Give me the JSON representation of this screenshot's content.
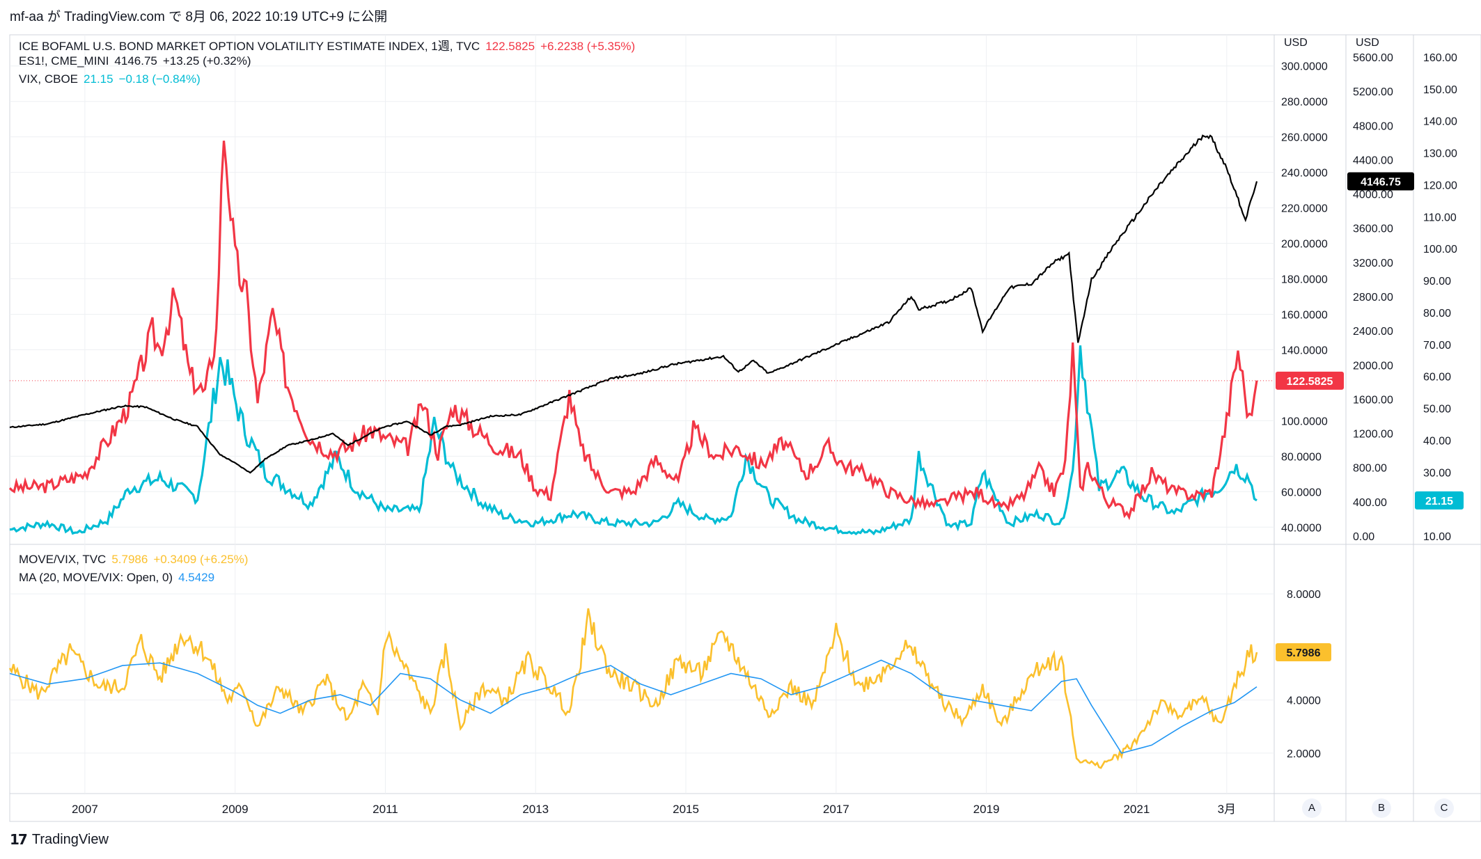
{
  "header": {
    "text": "mf-aa が TradingView.com で 8月 06, 2022 10:19 UTC+9 に公開"
  },
  "legends": {
    "move": {
      "name": "ICE BOFAML U.S. BOND MARKET OPTION VOLATILITY ESTIMATE INDEX, 1週, TVC",
      "value": "122.5825",
      "change": "+6.2238 (+5.35%)"
    },
    "es": {
      "name": "ES1!, CME_MINI",
      "value": "4146.75",
      "change": "+13.25 (+0.32%)"
    },
    "vix": {
      "name": "VIX, CBOE",
      "value": "21.15",
      "change": "−0.18 (−0.84%)"
    },
    "ratio": {
      "name": "MOVE/VIX, TVC",
      "value": "5.7986",
      "change": "+0.3409 (+6.25%)"
    },
    "ma": {
      "name": "MA (20, MOVE/VIX: Open, 0)",
      "value": "4.5429"
    }
  },
  "colors": {
    "move": "#f23645",
    "es": "#000000",
    "vix": "#00bcd4",
    "ratio": "#fbc02d",
    "ma": "#2196f3",
    "grid": "#eef0f3",
    "axis_text": "#131722"
  },
  "footer": {
    "brand": "TradingView",
    "logo_icon": "tradingview-logo-icon"
  },
  "scale_buttons": [
    "A",
    "B",
    "C"
  ],
  "chart_data": [
    {
      "type": "line",
      "title": "ICE BOFAML U.S. BOND MARKET OPTION VOLATILITY ESTIMATE INDEX, 1週, TVC",
      "x_labels": [
        "2007",
        "2009",
        "2011",
        "2013",
        "2015",
        "2017",
        "2019",
        "2021",
        "3月"
      ],
      "axes": {
        "A": {
          "unit": "USD",
          "ticks": [
            "300.0000",
            "280.0000",
            "260.0000",
            "240.0000",
            "220.0000",
            "200.0000",
            "180.0000",
            "160.0000",
            "140.0000",
            "100.0000",
            "80.0000",
            "60.0000",
            "40.0000"
          ],
          "range": [
            35,
            305
          ],
          "last_value_label": "122.5825"
        },
        "B": {
          "unit": "USD",
          "ticks": [
            "5600.00",
            "5200.00",
            "4800.00",
            "4400.00",
            "4000.00",
            "3600.00",
            "3200.00",
            "2800.00",
            "2400.00",
            "2000.00",
            "1600.00",
            "1200.00",
            "800.00",
            "400.00",
            "0.00"
          ],
          "range": [
            0,
            5600
          ],
          "last_value_label": "4146.75"
        },
        "C": {
          "ticks": [
            "160.00",
            "150.00",
            "140.00",
            "130.00",
            "120.00",
            "110.00",
            "100.00",
            "90.00",
            "80.00",
            "70.00",
            "60.00",
            "50.00",
            "40.00",
            "30.00",
            "20.00",
            "10.00"
          ],
          "range": [
            10,
            160
          ],
          "last_value_label": "21.15"
        }
      },
      "series": [
        {
          "name": "MOVE",
          "axis": "A",
          "x": [
            2006.0,
            2006.5,
            2007.0,
            2007.4,
            2007.6,
            2007.9,
            2008.0,
            2008.2,
            2008.4,
            2008.6,
            2008.75,
            2008.85,
            2009.0,
            2009.15,
            2009.3,
            2009.5,
            2009.7,
            2009.85,
            2010.0,
            2010.3,
            2010.5,
            2010.8,
            2011.0,
            2011.3,
            2011.5,
            2011.7,
            2011.9,
            2012.2,
            2012.5,
            2012.8,
            2013.0,
            2013.2,
            2013.45,
            2013.6,
            2013.8,
            2014.0,
            2014.3,
            2014.6,
            2014.9,
            2015.1,
            2015.4,
            2015.7,
            2016.0,
            2016.3,
            2016.6,
            2016.9,
            2017.1,
            2017.4,
            2017.7,
            2018.0,
            2018.3,
            2018.6,
            2018.9,
            2019.2,
            2019.5,
            2019.7,
            2019.9,
            2020.05,
            2020.15,
            2020.25,
            2020.35,
            2020.6,
            2020.9,
            2021.2,
            2021.5,
            2021.8,
            2022.0,
            2022.2,
            2022.35,
            2022.5,
            2022.6
          ],
          "values": [
            62,
            63,
            70,
            95,
            110,
            150,
            140,
            170,
            125,
            115,
            150,
            265,
            190,
            170,
            110,
            160,
            120,
            105,
            90,
            82,
            85,
            95,
            90,
            85,
            110,
            82,
            108,
            95,
            85,
            80,
            62,
            58,
            115,
            85,
            70,
            60,
            60,
            78,
            65,
            95,
            80,
            85,
            75,
            88,
            70,
            85,
            75,
            70,
            60,
            55,
            52,
            57,
            60,
            50,
            58,
            72,
            60,
            75,
            140,
            60,
            75,
            55,
            48,
            70,
            60,
            58,
            60,
            100,
            140,
            100,
            122.58
          ]
        },
        {
          "name": "ES1!",
          "axis": "B",
          "x": [
            2006.0,
            2006.5,
            2007.0,
            2007.5,
            2007.8,
            2008.2,
            2008.5,
            2008.8,
            2008.95,
            2009.2,
            2009.4,
            2009.7,
            2010.0,
            2010.3,
            2010.5,
            2010.8,
            2011.0,
            2011.3,
            2011.6,
            2011.8,
            2012.0,
            2012.4,
            2012.8,
            2013.2,
            2013.6,
            2014.0,
            2014.4,
            2014.8,
            2015.2,
            2015.5,
            2015.7,
            2015.9,
            2016.1,
            2016.5,
            2016.9,
            2017.3,
            2017.7,
            2018.0,
            2018.1,
            2018.5,
            2018.8,
            2018.95,
            2019.3,
            2019.6,
            2019.9,
            2020.1,
            2020.22,
            2020.4,
            2020.7,
            2021.0,
            2021.3,
            2021.6,
            2021.9,
            2022.0,
            2022.2,
            2022.45,
            2022.6
          ],
          "values": [
            1270,
            1310,
            1420,
            1520,
            1510,
            1360,
            1280,
            950,
            880,
            740,
            900,
            1060,
            1120,
            1200,
            1060,
            1200,
            1280,
            1340,
            1180,
            1280,
            1300,
            1400,
            1420,
            1560,
            1700,
            1840,
            1900,
            2000,
            2060,
            2100,
            1920,
            2050,
            1900,
            2050,
            2200,
            2350,
            2500,
            2800,
            2650,
            2750,
            2900,
            2400,
            2900,
            2950,
            3200,
            3300,
            2250,
            3000,
            3400,
            3750,
            4100,
            4400,
            4700,
            4650,
            4300,
            3700,
            4146.75
          ]
        },
        {
          "name": "VIX",
          "axis": "C",
          "x": [
            2006.0,
            2006.5,
            2006.9,
            2007.3,
            2007.6,
            2008.0,
            2008.5,
            2008.8,
            2008.9,
            2009.1,
            2009.4,
            2009.7,
            2010.0,
            2010.35,
            2010.6,
            2011.0,
            2011.45,
            2011.65,
            2011.9,
            2012.3,
            2012.6,
            2013.0,
            2013.5,
            2014.0,
            2014.6,
            2014.9,
            2015.3,
            2015.6,
            2015.8,
            2016.1,
            2016.5,
            2017.0,
            2017.5,
            2018.0,
            2018.1,
            2018.5,
            2018.8,
            2018.95,
            2019.3,
            2019.7,
            2020.0,
            2020.15,
            2020.25,
            2020.5,
            2020.8,
            2021.1,
            2021.5,
            2021.9,
            2022.1,
            2022.3,
            2022.5,
            2022.6
          ],
          "values": [
            12,
            14,
            11,
            15,
            25,
            28,
            22,
            65,
            60,
            45,
            30,
            25,
            20,
            35,
            25,
            18,
            18,
            45,
            30,
            20,
            16,
            14,
            17,
            14,
            14,
            20,
            15,
            16,
            35,
            22,
            15,
            12,
            11,
            15,
            35,
            13,
            14,
            30,
            14,
            17,
            14,
            30,
            70,
            25,
            30,
            22,
            17,
            23,
            25,
            32,
            28,
            21.15
          ]
        }
      ]
    },
    {
      "type": "line",
      "title": "MOVE/VIX, TVC",
      "x_labels": [
        "2007",
        "2009",
        "2011",
        "2013",
        "2015",
        "2017",
        "2019",
        "2021",
        "3月"
      ],
      "yticks": [
        "8.0000",
        "4.0000",
        "2.0000"
      ],
      "ylim": [
        1.0,
        9.0
      ],
      "last_value_label": "5.7986",
      "series": [
        {
          "name": "MOVE/VIX",
          "x": [
            2006.0,
            2006.4,
            2006.8,
            2007.2,
            2007.5,
            2007.75,
            2008.0,
            2008.3,
            2008.6,
            2008.9,
            2009.1,
            2009.3,
            2009.6,
            2009.9,
            2010.2,
            2010.5,
            2010.7,
            2010.9,
            2011.0,
            2011.3,
            2011.6,
            2011.8,
            2012.0,
            2012.3,
            2012.6,
            2012.9,
            2013.2,
            2013.45,
            2013.7,
            2014.0,
            2014.3,
            2014.6,
            2014.9,
            2015.2,
            2015.5,
            2015.8,
            2016.1,
            2016.4,
            2016.7,
            2017.0,
            2017.3,
            2017.6,
            2017.9,
            2018.1,
            2018.4,
            2018.7,
            2018.95,
            2019.2,
            2019.5,
            2019.8,
            2020.0,
            2020.2,
            2020.5,
            2020.8,
            2021.0,
            2021.3,
            2021.6,
            2021.9,
            2022.1,
            2022.3,
            2022.5,
            2022.6
          ],
          "values": [
            5.2,
            4.2,
            5.8,
            4.5,
            4.5,
            6.2,
            4.8,
            6.5,
            5.8,
            4.0,
            4.5,
            3.0,
            4.5,
            3.5,
            4.8,
            3.2,
            4.5,
            3.5,
            6.5,
            5.0,
            3.5,
            5.8,
            3.0,
            4.5,
            4.0,
            5.5,
            4.5,
            3.5,
            7.0,
            5.0,
            4.5,
            3.8,
            5.5,
            5.0,
            6.5,
            5.0,
            3.5,
            4.5,
            3.8,
            6.5,
            4.5,
            5.0,
            6.0,
            5.5,
            4.0,
            3.2,
            4.5,
            3.0,
            4.5,
            5.5,
            5.5,
            1.8,
            1.5,
            2.0,
            2.5,
            3.8,
            3.5,
            4.0,
            3.0,
            4.5,
            5.8,
            5.8
          ]
        },
        {
          "name": "MA 20",
          "x": [
            2006.0,
            2006.5,
            2007.0,
            2007.5,
            2008.0,
            2008.5,
            2009.0,
            2009.3,
            2009.6,
            2010.0,
            2010.4,
            2010.8,
            2011.2,
            2011.6,
            2012.0,
            2012.4,
            2012.8,
            2013.2,
            2013.6,
            2014.0,
            2014.4,
            2014.8,
            2015.2,
            2015.6,
            2016.0,
            2016.4,
            2016.8,
            2017.2,
            2017.6,
            2018.0,
            2018.4,
            2018.8,
            2019.2,
            2019.6,
            2020.0,
            2020.2,
            2020.4,
            2020.8,
            2021.2,
            2021.6,
            2022.0,
            2022.3,
            2022.6
          ],
          "values": [
            5.0,
            4.6,
            4.8,
            5.3,
            5.4,
            5.0,
            4.3,
            3.8,
            3.5,
            4.0,
            4.2,
            3.8,
            5.0,
            4.8,
            4.0,
            3.5,
            4.2,
            4.5,
            5.0,
            5.3,
            4.6,
            4.2,
            4.6,
            5.0,
            4.8,
            4.2,
            4.5,
            5.0,
            5.5,
            5.0,
            4.2,
            4.0,
            3.8,
            3.6,
            4.7,
            4.8,
            3.8,
            2.0,
            2.3,
            3.0,
            3.6,
            3.9,
            4.5
          ]
        }
      ]
    }
  ]
}
